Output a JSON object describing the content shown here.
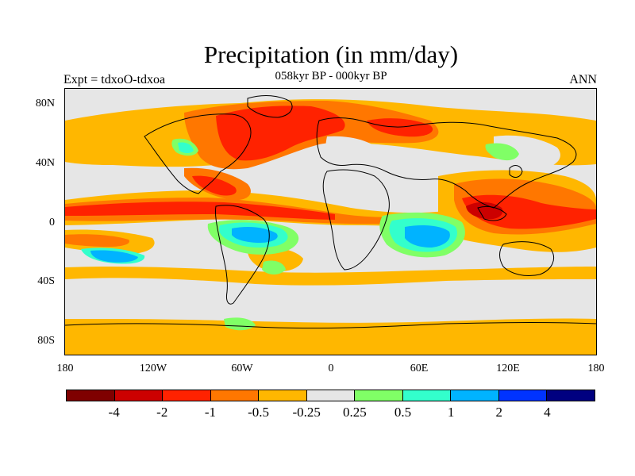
{
  "title": "Precipitation (in mm/day)",
  "subtitle": "058kyr BP - 000kyr BP",
  "left_label": "Expt = tdxoO-tdxoa",
  "right_label": "ANN",
  "lat_ticks": [
    "80N",
    "40N",
    "0",
    "40S",
    "80S"
  ],
  "lon_ticks": [
    "180",
    "120W",
    "60W",
    "0",
    "60E",
    "120E",
    "180"
  ],
  "colorbar": {
    "colors": [
      "#7f0000",
      "#cc0000",
      "#ff2200",
      "#ff7700",
      "#ffb700",
      "#e6e6e6",
      "#80ff66",
      "#33ffcc",
      "#00b3ff",
      "#0033ff",
      "#000080"
    ],
    "labels": [
      "-4",
      "-2",
      "-1",
      "-0.5",
      "-0.25",
      "0.25",
      "0.5",
      "1",
      "2",
      "4"
    ]
  }
}
